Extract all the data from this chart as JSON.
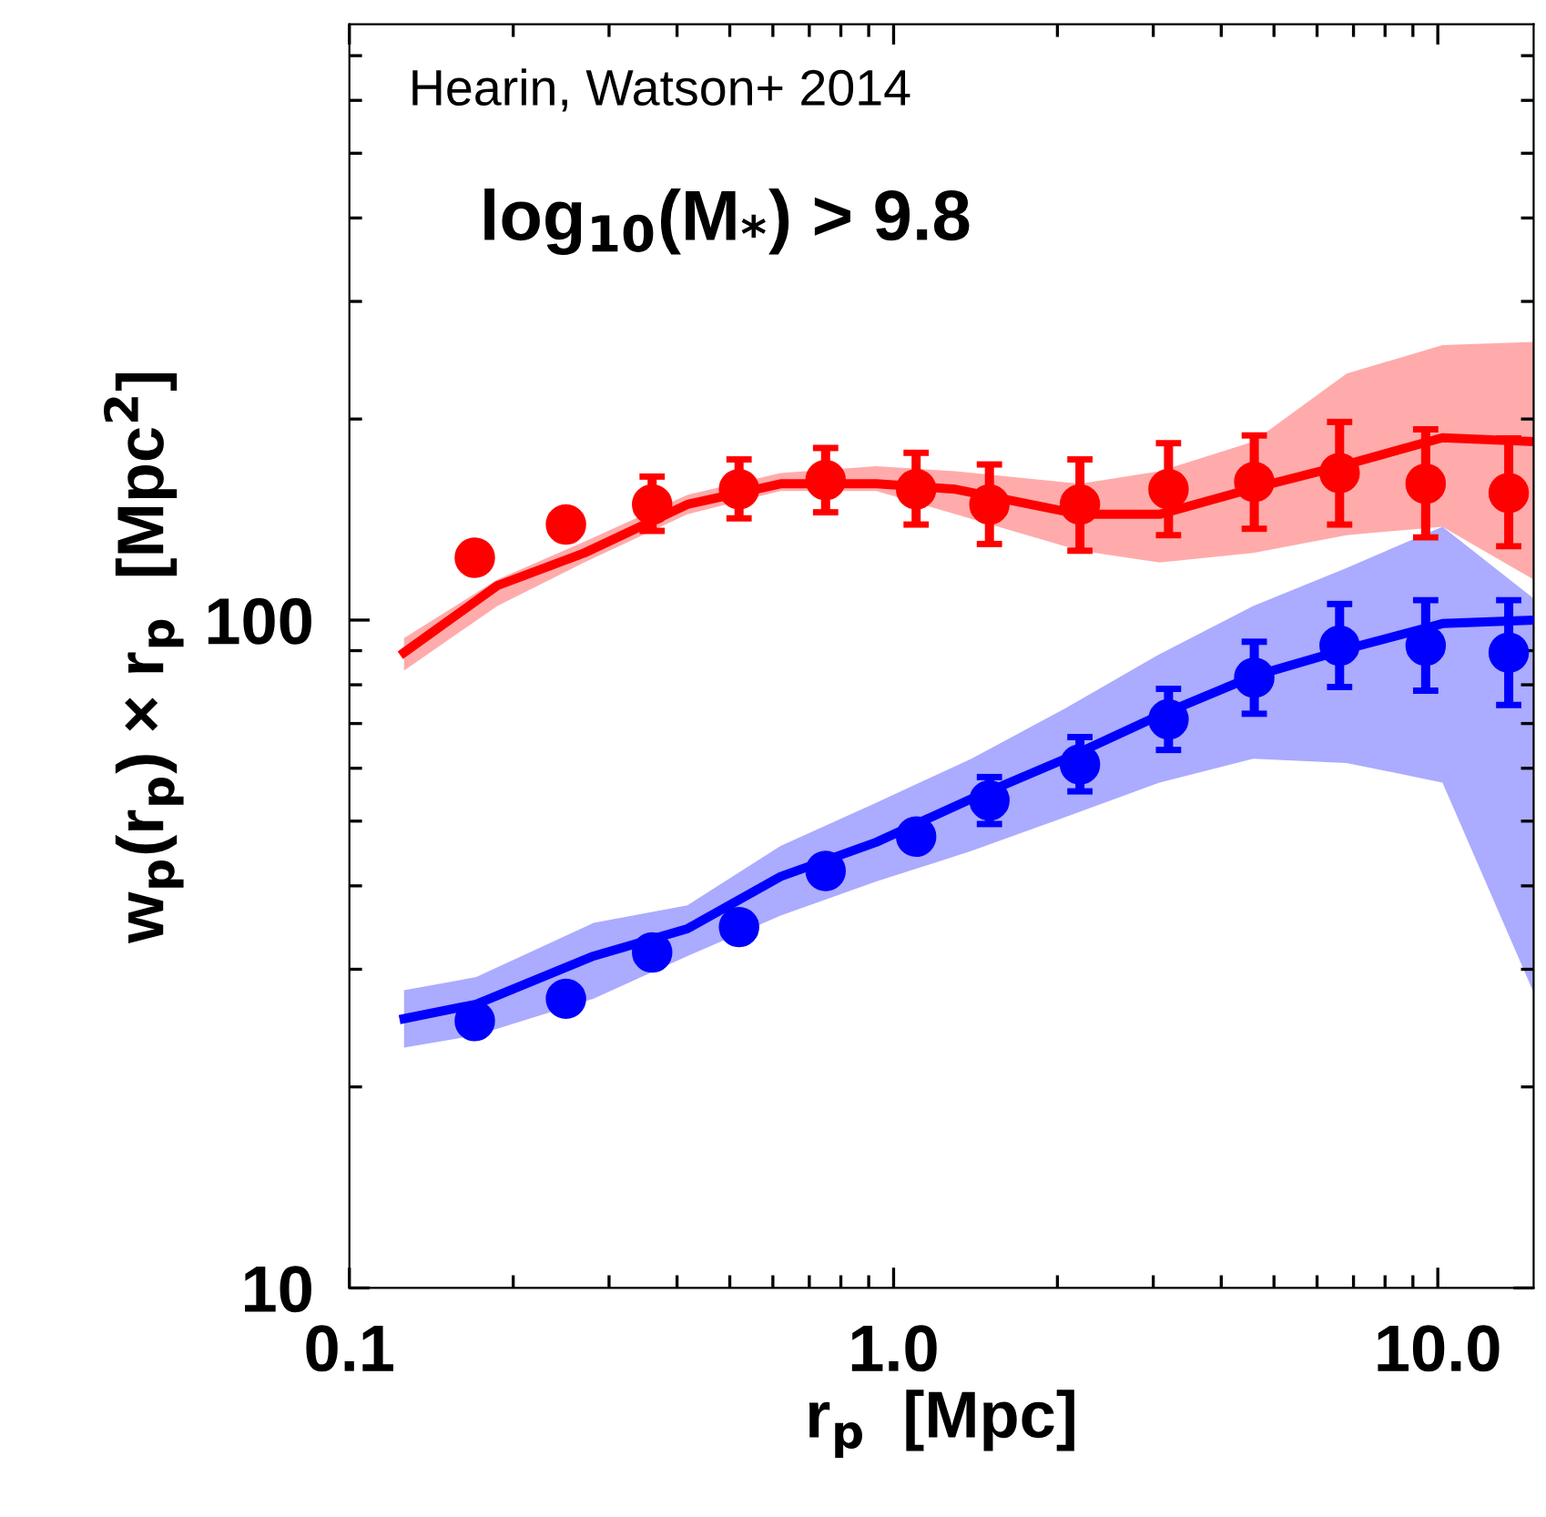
{
  "chart_data": {
    "type": "scatter",
    "xlabel": "r$_{p}$  [Mpc]",
    "ylabel": "w$_{p}$(r$_{p}$) × r$_{p}$  [Mpc$^{2}$]",
    "log": "xy",
    "xlim": [
      0.1,
      15
    ],
    "ylim": [
      10,
      780
    ],
    "xticks": [
      {
        "value": 0.1,
        "label": "0.1"
      },
      {
        "value": 1,
        "label": "1.0"
      },
      {
        "value": 10,
        "label": "10.0"
      }
    ],
    "yticks": [
      10,
      100
    ],
    "grid": false,
    "legend": false,
    "annotations": [
      "Hearin, Watson+ 2014",
      "log$_{10}$(M$_{*}$) > 9.8"
    ],
    "series": [
      {
        "type": "line",
        "color": "#ff0000",
        "line_style": "solid",
        "marker": "none",
        "x": [
          0.126,
          0.187,
          0.27,
          0.418,
          0.62,
          0.93,
          1.3,
          2.2,
          3.08,
          4.58,
          6.8,
          10.2,
          15
        ],
        "values": [
          89.4,
          112.6,
          126,
          149,
          160,
          160,
          157,
          144,
          144,
          157.5,
          171,
          187.5,
          185
        ],
        "lower": [
          84,
          105,
          122,
          144,
          156,
          156,
          144,
          127,
          122,
          126,
          134,
          138,
          115
        ],
        "upper": [
          94,
          115,
          131,
          154,
          166,
          170,
          167,
          160,
          167,
          185,
          234,
          258,
          261
        ]
      },
      {
        "type": "line",
        "color": "#0000ff",
        "line_style": "solid",
        "marker": "none",
        "x": [
          0.126,
          0.171,
          0.281,
          0.418,
          0.62,
          0.93,
          1.39,
          2.07,
          3.08,
          4.58,
          6.8,
          10.2,
          15
        ],
        "values": [
          25.3,
          26.6,
          31.4,
          34.5,
          41.3,
          46.5,
          54,
          62,
          72,
          82.4,
          90.5,
          98.8,
          100
        ],
        "lower": [
          22.9,
          23.9,
          27.1,
          31.4,
          36.1,
          40.6,
          45.1,
          50.7,
          57.1,
          62,
          61.1,
          57.1,
          27.7
        ],
        "upper": [
          27.9,
          29.2,
          35.2,
          37.4,
          45.9,
          53.3,
          62,
          73.8,
          88.9,
          105,
          119.7,
          138,
          107.7
        ]
      },
      {
        "type": "scatter",
        "color": "#ff0000",
        "marker": "circle",
        "x": [
          0.17,
          0.25,
          0.36,
          0.52,
          0.75,
          1.1,
          1.5,
          2.2,
          3.2,
          4.6,
          6.6,
          9.5,
          13.5
        ],
        "values": [
          124,
          139,
          149,
          157,
          162,
          157,
          149,
          149,
          157,
          161,
          166,
          160,
          155
        ],
        "errors": [
          null,
          null,
          [
            136,
            164
          ],
          [
            142,
            174
          ],
          [
            145,
            181
          ],
          [
            139,
            178
          ],
          [
            130,
            171
          ],
          [
            127,
            174
          ],
          [
            134,
            184
          ],
          [
            137,
            189
          ],
          [
            139,
            198
          ],
          [
            133,
            193
          ],
          [
            129,
            187
          ]
        ]
      },
      {
        "type": "scatter",
        "color": "#0000ff",
        "marker": "circle",
        "x": [
          0.17,
          0.25,
          0.36,
          0.52,
          0.75,
          1.1,
          1.5,
          2.2,
          3.2,
          4.6,
          6.6,
          9.5,
          13.5
        ],
        "values": [
          25.1,
          27.1,
          31.8,
          34.7,
          42.1,
          47.4,
          53.7,
          60.8,
          71,
          82,
          91.6,
          91.6,
          89.4
        ],
        "errors": [
          null,
          null,
          null,
          null,
          null,
          null,
          [
            49.5,
            58.2
          ],
          [
            55.4,
            66.8
          ],
          [
            63.9,
            78.9
          ],
          [
            72.4,
            92.8
          ],
          [
            79.4,
            105.7
          ],
          [
            78.4,
            107.1
          ],
          [
            74.6,
            107.1
          ]
        ]
      }
    ]
  }
}
